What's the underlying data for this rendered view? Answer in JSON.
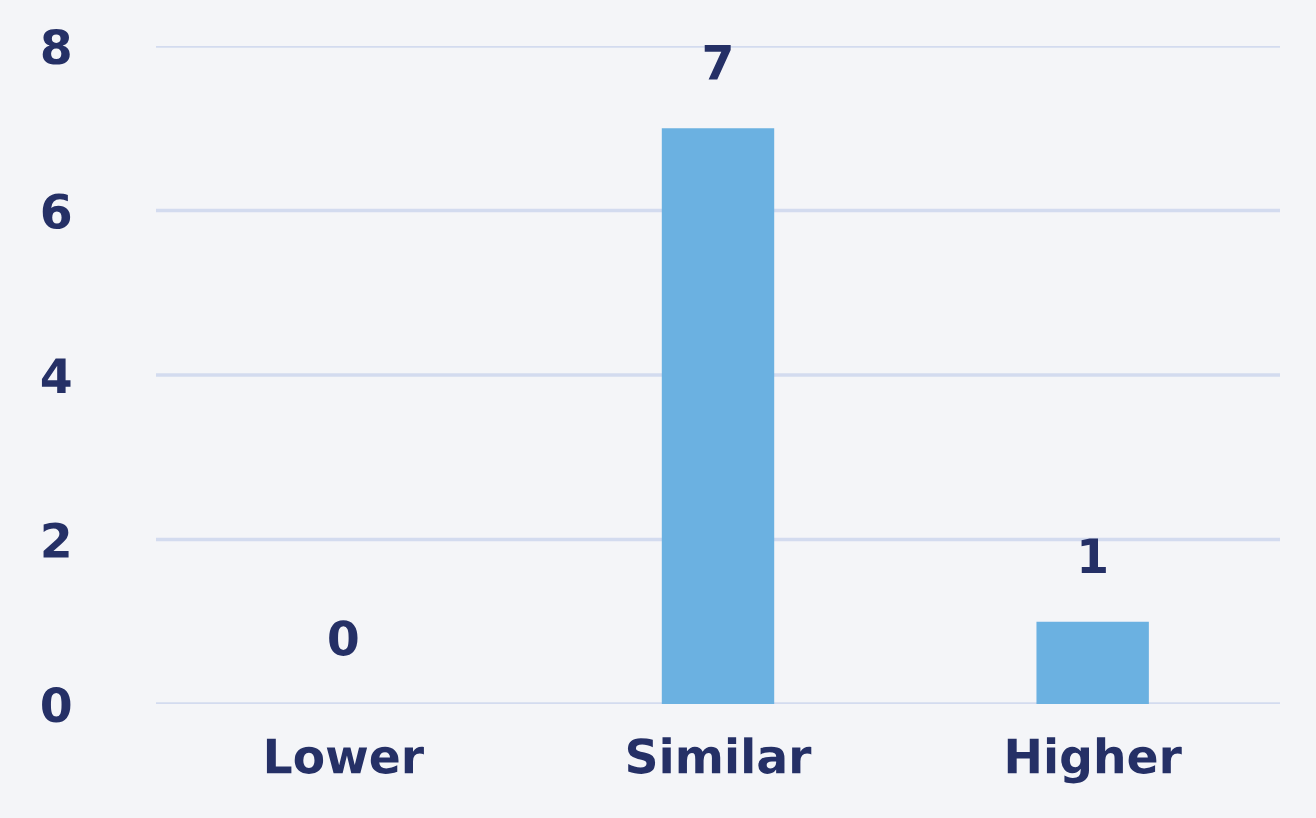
{
  "chart_data": {
    "type": "bar",
    "categories": [
      "Lower",
      "Similar",
      "Higher"
    ],
    "values": [
      0,
      7,
      1
    ],
    "color": "#6bb1e1",
    "ylim": [
      0,
      8
    ],
    "yticks": [
      0,
      2,
      4,
      6,
      8
    ],
    "grid": "y",
    "data_labels": true
  }
}
